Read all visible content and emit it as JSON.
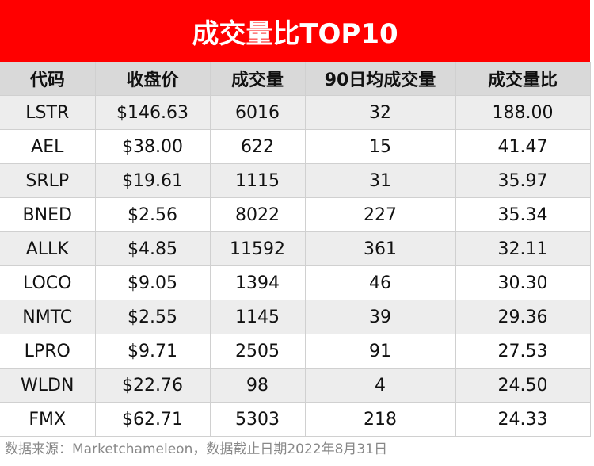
{
  "title": "成交量比TOP10",
  "table": {
    "header": [
      "代码",
      "收盘价",
      "成交量",
      "90日均成交量",
      "成交量比"
    ],
    "rows": [
      [
        "LSTR",
        "$146.63",
        "6016",
        "32",
        "188.00"
      ],
      [
        "AEL",
        "$38.00",
        "622",
        "15",
        "41.47"
      ],
      [
        "SRLP",
        "$19.61",
        "1115",
        "31",
        "35.97"
      ],
      [
        "BNED",
        "$2.56",
        "8022",
        "227",
        "35.34"
      ],
      [
        "ALLK",
        "$4.85",
        "11592",
        "361",
        "32.11"
      ],
      [
        "LOCO",
        "$9.05",
        "1394",
        "46",
        "30.30"
      ],
      [
        "NMTC",
        "$2.55",
        "1145",
        "39",
        "29.36"
      ],
      [
        "LPRO",
        "$9.71",
        "2505",
        "91",
        "27.53"
      ],
      [
        "WLDN",
        "$22.76",
        "98",
        "4",
        "24.50"
      ],
      [
        "FMX",
        "$62.71",
        "5303",
        "218",
        "24.33"
      ]
    ]
  },
  "footer": "数据来源：Marketchameleon，数据截止日期2022年8月31日"
}
